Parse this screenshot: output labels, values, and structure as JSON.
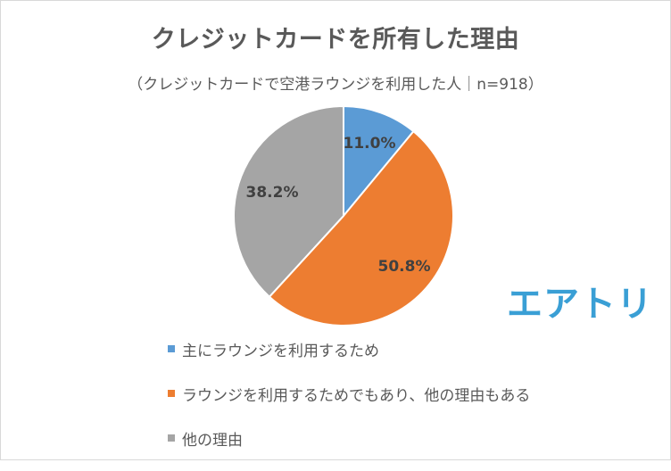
{
  "chart_data": {
    "type": "pie",
    "title": "クレジットカードを所有した理由",
    "subtitle": "（クレジットカードで空港ラウンジを利用した人｜n=918）",
    "slices": [
      {
        "name": "主にラウンジを利用するため",
        "value": 11.0,
        "label": "11.0%",
        "color": "#5b9bd5"
      },
      {
        "name": "ラウンジを利用するためでもあり、他の理由もある",
        "value": 50.8,
        "label": "50.8%",
        "color": "#ed7d31"
      },
      {
        "name": "他の理由",
        "value": 38.2,
        "label": "38.2%",
        "color": "#a5a5a5"
      }
    ],
    "legend_position": "bottom",
    "start_angle": "12 o'clock",
    "direction": "clockwise"
  },
  "logo": {
    "text": "エアトリ",
    "color": "#3a9fd5"
  }
}
